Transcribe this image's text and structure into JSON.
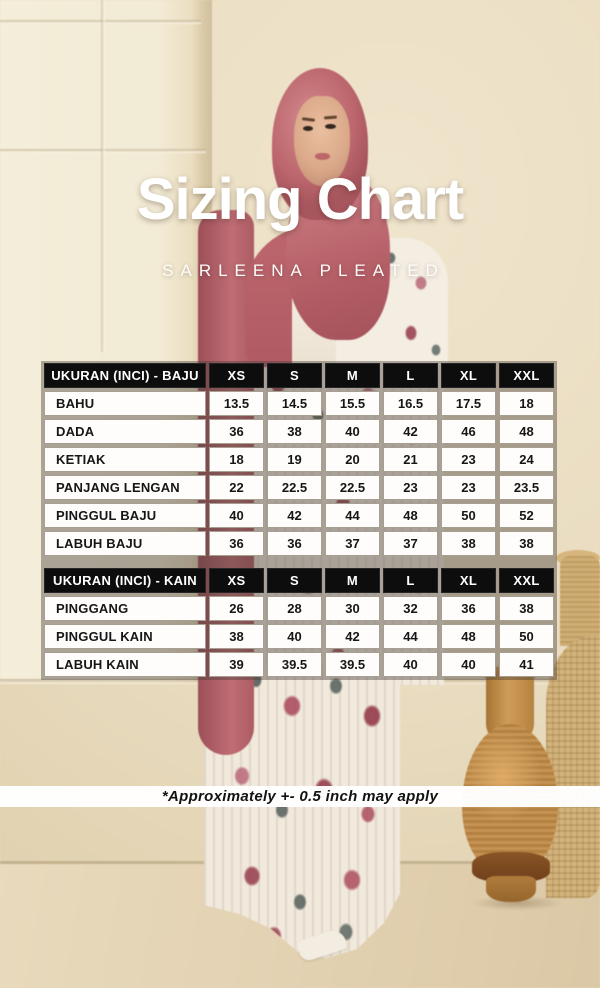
{
  "page": {
    "title": "Sizing Chart",
    "subtitle": "SARLEENA PLEATED",
    "footnote": "*Approximately +- 0.5 inch may apply"
  },
  "chart_data": [
    {
      "type": "table",
      "title": "UKURAN (INCI) - BAJU",
      "columns": [
        "XS",
        "S",
        "M",
        "L",
        "XL",
        "XXL"
      ],
      "rows": [
        {
          "label": "BAHU",
          "values": [
            13.5,
            14.5,
            15.5,
            16.5,
            17.5,
            18
          ]
        },
        {
          "label": "DADA",
          "values": [
            36,
            38,
            40,
            42,
            46,
            48
          ]
        },
        {
          "label": "KETIAK",
          "values": [
            18,
            19,
            20,
            21,
            23,
            24
          ]
        },
        {
          "label": "PANJANG LENGAN",
          "values": [
            22,
            22.5,
            22.5,
            23,
            23,
            23.5
          ]
        },
        {
          "label": "PINGGUL BAJU",
          "values": [
            40,
            42,
            44,
            48,
            50,
            52
          ]
        },
        {
          "label": "LABUH BAJU",
          "values": [
            36,
            36,
            37,
            37,
            38,
            38
          ]
        }
      ]
    },
    {
      "type": "table",
      "title": "UKURAN (INCI) - KAIN",
      "columns": [
        "XS",
        "S",
        "M",
        "L",
        "XL",
        "XXL"
      ],
      "rows": [
        {
          "label": "PINGGANG",
          "values": [
            26,
            28,
            30,
            32,
            36,
            38
          ]
        },
        {
          "label": "PINGGUL KAIN",
          "values": [
            38,
            40,
            42,
            44,
            48,
            50
          ]
        },
        {
          "label": "LABUH KAIN",
          "values": [
            39,
            39.5,
            39.5,
            40,
            40,
            41
          ]
        }
      ]
    }
  ],
  "colors": {
    "title_text": "#ffffff",
    "table_header_bg": "#0d0d0d",
    "table_header_text": "#ffffff",
    "table_cell_bg": "#fefdfc",
    "table_cell_text": "#161616",
    "banner_bg": "#ffffff",
    "banner_text": "#121212",
    "hijab_rose": "#bf6d73",
    "wall_beige": "#e9dcc0",
    "wood_vase": "#c08a46",
    "wicker": "#d4b47c"
  }
}
